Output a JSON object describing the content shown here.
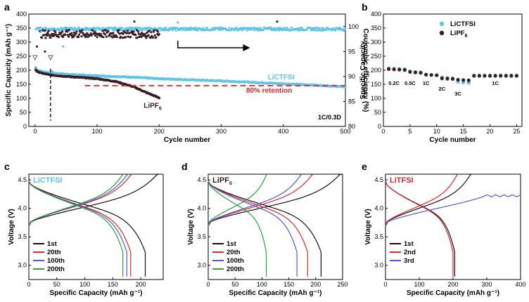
{
  "chart_data": [
    {
      "panel": "a",
      "type": "scatter",
      "xlabel": "Cycle number",
      "ylabel": "Specific Capacity (mAh g⁻¹)",
      "y2label": "Coulombic efficiency (%)",
      "xlim": [
        -10,
        500
      ],
      "ylim": [
        0,
        400
      ],
      "y2lim": [
        80,
        102.5
      ],
      "xticks": [
        "0",
        "100",
        "200",
        "300",
        "400",
        "500"
      ],
      "yticks": [
        "0",
        "50",
        "100",
        "150",
        "200",
        "250",
        "300",
        "350",
        "400"
      ],
      "y2ticks": [
        "80",
        "85",
        "90",
        "95",
        "100"
      ],
      "series": [
        {
          "name": "LiCTFSI",
          "color": "#5ec4ea",
          "capacity_points": [
            [
              0,
              215
            ],
            [
              3,
              200
            ],
            [
              10,
              196
            ],
            [
              25,
              190
            ],
            [
              50,
              186
            ],
            [
              100,
              180
            ],
            [
              150,
              176
            ],
            [
              200,
              170
            ],
            [
              250,
              166
            ],
            [
              300,
              162
            ],
            [
              350,
              157
            ],
            [
              400,
              152
            ],
            [
              450,
              147
            ],
            [
              500,
              141
            ]
          ],
          "efficiency": 99.5
        },
        {
          "name": "LiPF6",
          "color": "#3a1f24",
          "capacity_points": [
            [
              0,
              205
            ],
            [
              3,
              196
            ],
            [
              10,
              190
            ],
            [
              25,
              183
            ],
            [
              50,
              178
            ],
            [
              100,
              170
            ],
            [
              130,
              160
            ],
            [
              160,
              140
            ],
            [
              180,
              120
            ],
            [
              200,
              102
            ]
          ],
          "efficiency": 98.5
        }
      ],
      "retention_line": {
        "value": 145,
        "x_start": 80,
        "x_end": 500,
        "color": "#e0242b"
      },
      "annotations": {
        "series_1_label": "LiCTFSI",
        "series_2_label": "LiPF",
        "series_2_sub": "6",
        "retention_label": "80% retention",
        "rate_label": "1C/0.3D"
      },
      "formation_markers_x": [
        0,
        25
      ]
    },
    {
      "panel": "b",
      "type": "scatter",
      "xlabel": "Cycle number",
      "ylabel": "Specific Capacity",
      "xlim": [
        0,
        26
      ],
      "ylim": [
        0,
        400
      ],
      "xticks": [
        "0",
        "5",
        "10",
        "15",
        "20",
        "25"
      ],
      "yticks": [
        "0",
        "50",
        "100",
        "150",
        "200",
        "250",
        "300",
        "350",
        "400"
      ],
      "legend": [
        {
          "label": "LiCTFSI",
          "color": "#5ec4ea"
        },
        {
          "label": "LiPF",
          "sub": "6",
          "color": "#3a1f24"
        }
      ],
      "series": [
        {
          "name": "LiCTFSI",
          "color": "#5ec4ea",
          "values": [
            207,
            206,
            205,
            204,
            196,
            194,
            193,
            185,
            184,
            183,
            175,
            173,
            172,
            158,
            156,
            155,
            182,
            182,
            182,
            182,
            182,
            182,
            182,
            182,
            182
          ]
        },
        {
          "name": "LiPF6",
          "color": "#3a1f24",
          "values": [
            204,
            203,
            202,
            201,
            194,
            192,
            191,
            184,
            183,
            182,
            171,
            170,
            169,
            166,
            165,
            164,
            180,
            180,
            180,
            180,
            180,
            180,
            180,
            180,
            180
          ]
        }
      ],
      "rate_labels": [
        {
          "text": "0.2C",
          "x": 2,
          "y": 148
        },
        {
          "text": "0.5C",
          "x": 5,
          "y": 148
        },
        {
          "text": "1C",
          "x": 8,
          "y": 148
        },
        {
          "text": "2C",
          "x": 11,
          "y": 128
        },
        {
          "text": "3C",
          "x": 14,
          "y": 110
        },
        {
          "text": "1C",
          "x": 21,
          "y": 148
        }
      ]
    },
    {
      "panel": "c",
      "type": "line",
      "title": "LiCTFSI",
      "title_color": "#5ec4ea",
      "xlabel": "Specific Capacity (mAh g⁻¹)",
      "ylabel": "Voltage (V)",
      "xlim": [
        0,
        240
      ],
      "ylim": [
        2.75,
        4.6
      ],
      "xticks": [
        "0",
        "50",
        "100",
        "150",
        "200"
      ],
      "yticks": [
        "3.0",
        "3.5",
        "4.0",
        "4.5"
      ],
      "series": [
        {
          "name": "1st",
          "color": "#111111",
          "charge_end": 232,
          "discharge_end": 208
        },
        {
          "name": "20th",
          "color": "#e0242b",
          "charge_end": 185,
          "discharge_end": 182
        },
        {
          "name": "100th",
          "color": "#4a5cd8",
          "charge_end": 178,
          "discharge_end": 175
        },
        {
          "name": "200th",
          "color": "#2aa33a",
          "charge_end": 170,
          "discharge_end": 168
        }
      ]
    },
    {
      "panel": "d",
      "type": "line",
      "title": "LiPF",
      "title_sub": "6",
      "title_color": "#3a1f24",
      "xlabel": "Specific Capacity (mAh g⁻¹)",
      "ylabel": "Voltage (V)",
      "xlim": [
        0,
        250
      ],
      "ylim": [
        2.75,
        4.6
      ],
      "xticks": [
        "0",
        "50",
        "100",
        "150",
        "200",
        "250"
      ],
      "yticks": [
        "3.0",
        "3.5",
        "4.0",
        "4.5"
      ],
      "series": [
        {
          "name": "1st",
          "color": "#111111",
          "charge_end": 248,
          "discharge_end": 210
        },
        {
          "name": "20th",
          "color": "#e0242b",
          "charge_end": 196,
          "discharge_end": 185
        },
        {
          "name": "100th",
          "color": "#4a5cd8",
          "charge_end": 175,
          "discharge_end": 165
        },
        {
          "name": "200th",
          "color": "#2aa33a",
          "charge_end": 110,
          "discharge_end": 108
        }
      ]
    },
    {
      "panel": "e",
      "type": "line",
      "title": "LiTFSI",
      "title_color": "#e0242b",
      "xlabel": "Specific Capacity (mAh g⁻¹)",
      "ylabel": "Voltage (V)",
      "xlim": [
        0,
        400
      ],
      "ylim": [
        2.75,
        4.6
      ],
      "xticks": [
        "0",
        "100",
        "200",
        "300",
        "400"
      ],
      "yticks": [
        "3.0",
        "3.5",
        "4.0",
        "4.5"
      ],
      "series": [
        {
          "name": "1st",
          "color": "#111111",
          "charge_end": 255,
          "discharge_end": 205
        },
        {
          "name": "2nd",
          "color": "#e0242b",
          "charge_end": 215,
          "discharge_end": 200
        },
        {
          "name": "3rd",
          "color": "#4a5cd8",
          "charge_end": 400,
          "plateau": 4.22
        }
      ]
    }
  ],
  "panel_labels": [
    "a",
    "b",
    "c",
    "d",
    "e"
  ]
}
